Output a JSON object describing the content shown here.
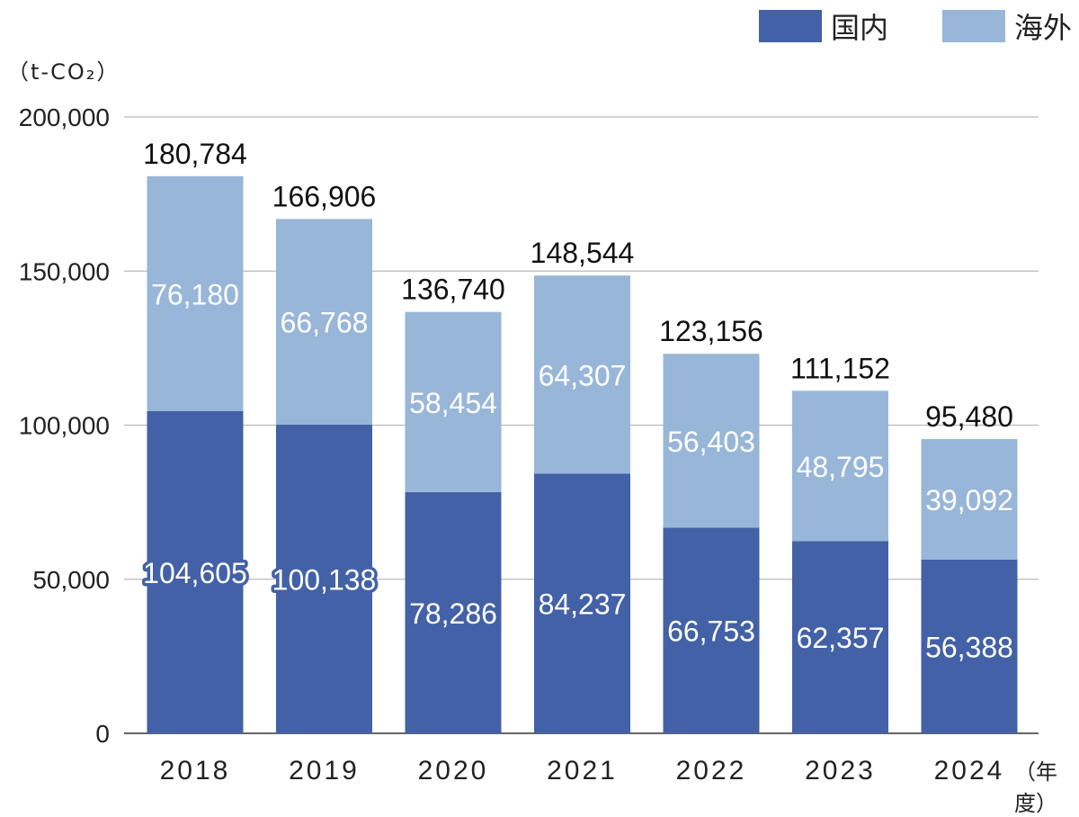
{
  "chart_data": {
    "type": "bar",
    "stacked": true,
    "categories": [
      "2018",
      "2019",
      "2020",
      "2021",
      "2022",
      "2023",
      "2024"
    ],
    "series": [
      {
        "name": "国内",
        "color": "#4361a6",
        "values": [
          104605,
          100138,
          78286,
          84237,
          66753,
          62357,
          56388
        ]
      },
      {
        "name": "海外",
        "color": "#98b6d8",
        "values": [
          76180,
          66768,
          58454,
          64307,
          56403,
          48795,
          39092
        ]
      }
    ],
    "totals": [
      180784,
      166906,
      136740,
      148544,
      123156,
      111152,
      95480
    ],
    "ylim": [
      0,
      200000
    ],
    "yticks": [
      0,
      50000,
      100000,
      150000,
      200000
    ],
    "ylabel": "（t-CO₂）",
    "xlabel": "（年度）",
    "grid": true,
    "legend": "top-right"
  }
}
